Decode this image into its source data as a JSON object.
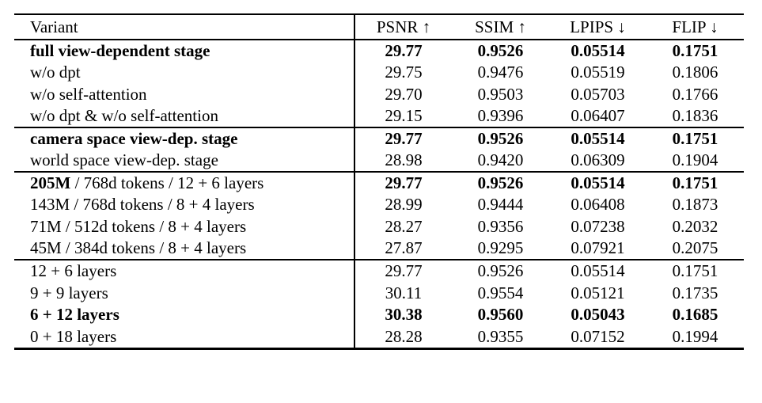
{
  "table": {
    "header": {
      "variant": "Variant",
      "psnr": "PSNR ↑",
      "ssim": "SSIM ↑",
      "lpips": "LPIPS ↓",
      "flip": "FLIP ↓"
    },
    "sections": [
      {
        "rows": [
          {
            "variant_bold": "full view-dependent stage",
            "variant_rest": "",
            "psnr": "29.77",
            "ssim": "0.9526",
            "lpips": "0.05514",
            "flip": "0.1751"
          },
          {
            "variant_bold": "",
            "variant_rest": "w/o dpt",
            "psnr": "29.75",
            "ssim": "0.9476",
            "lpips": "0.05519",
            "flip": "0.1806"
          },
          {
            "variant_bold": "",
            "variant_rest": "w/o self-attention",
            "psnr": "29.70",
            "ssim": "0.9503",
            "lpips": "0.05703",
            "flip": "0.1766"
          },
          {
            "variant_bold": "",
            "variant_rest": "w/o dpt & w/o self-attention",
            "psnr": "29.15",
            "ssim": "0.9396",
            "lpips": "0.06407",
            "flip": "0.1836"
          }
        ]
      },
      {
        "rows": [
          {
            "variant_bold": "camera space view-dep. stage",
            "variant_rest": "",
            "psnr": "29.77",
            "ssim": "0.9526",
            "lpips": "0.05514",
            "flip": "0.1751"
          },
          {
            "variant_bold": "",
            "variant_rest": "world space view-dep. stage",
            "psnr": "28.98",
            "ssim": "0.9420",
            "lpips": "0.06309",
            "flip": "0.1904"
          }
        ]
      },
      {
        "rows": [
          {
            "variant_bold": "205M",
            "variant_rest": " / 768d tokens / 12 + 6 layers",
            "psnr": "29.77",
            "ssim": "0.9526",
            "lpips": "0.05514",
            "flip": "0.1751"
          },
          {
            "variant_bold": "",
            "variant_rest": "143M / 768d tokens / 8 + 4 layers",
            "psnr": "28.99",
            "ssim": "0.9444",
            "lpips": "0.06408",
            "flip": "0.1873"
          },
          {
            "variant_bold": "",
            "variant_rest": "71M / 512d tokens / 8 + 4 layers",
            "psnr": "28.27",
            "ssim": "0.9356",
            "lpips": "0.07238",
            "flip": "0.2032"
          },
          {
            "variant_bold": "",
            "variant_rest": "45M / 384d tokens / 8 + 4 layers",
            "psnr": "27.87",
            "ssim": "0.9295",
            "lpips": "0.07921",
            "flip": "0.2075"
          }
        ]
      },
      {
        "rows": [
          {
            "variant_bold": "",
            "variant_rest": "12 + 6 layers",
            "psnr": "29.77",
            "ssim": "0.9526",
            "lpips": "0.05514",
            "flip": "0.1751"
          },
          {
            "variant_bold": "",
            "variant_rest": "9 + 9 layers",
            "psnr": "30.11",
            "ssim": "0.9554",
            "lpips": "0.05121",
            "flip": "0.1735"
          },
          {
            "variant_bold": "6 + 12 layers",
            "variant_rest": "",
            "psnr": "30.38",
            "ssim": "0.9560",
            "lpips": "0.05043",
            "flip": "0.1685"
          },
          {
            "variant_bold": "",
            "variant_rest": "0 + 18 layers",
            "psnr": "28.28",
            "ssim": "0.9355",
            "lpips": "0.07152",
            "flip": "0.1994"
          }
        ]
      }
    ]
  }
}
